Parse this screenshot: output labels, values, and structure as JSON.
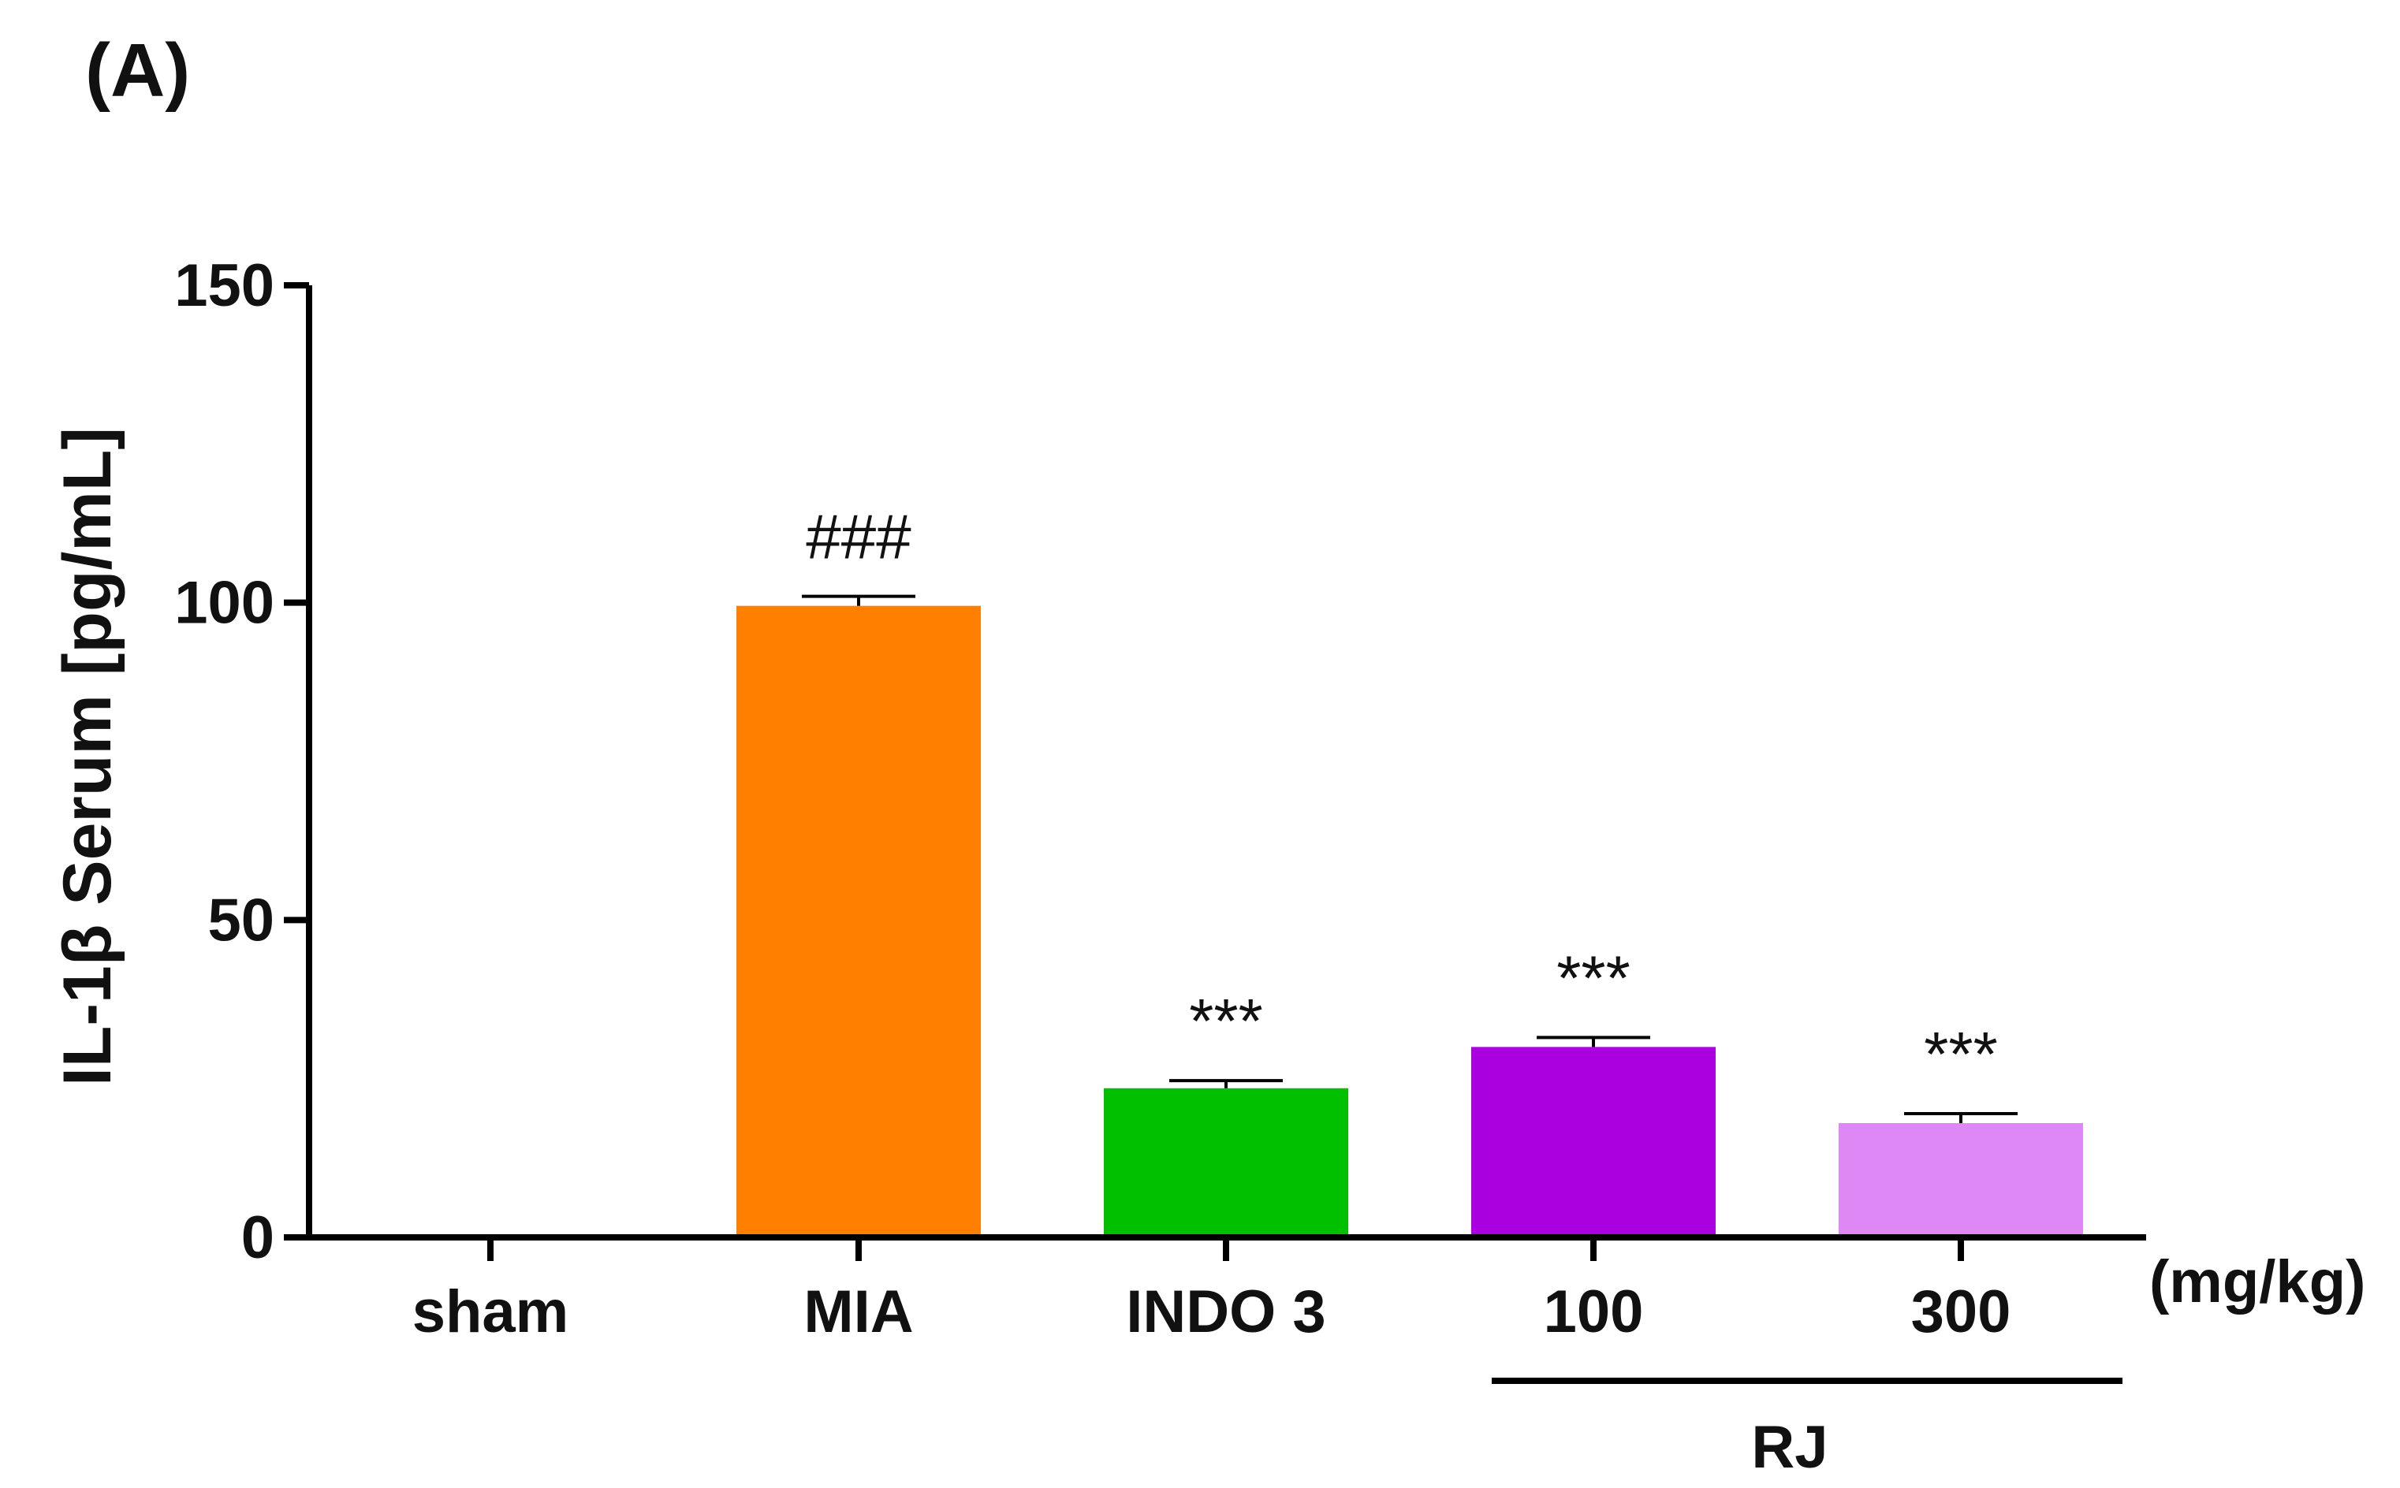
{
  "panel_label": "(A)",
  "chart_data": {
    "type": "bar",
    "ylabel": "IL-1β Serum [pg/mL]",
    "ylim": [
      0,
      150
    ],
    "yticks": [
      0,
      50,
      100,
      150
    ],
    "unit_label": "(mg/kg)",
    "categories": [
      "sham",
      "MIA",
      "INDO 3",
      "100",
      "300"
    ],
    "values": [
      0,
      99.5,
      23.5,
      30,
      18
    ],
    "errors": [
      0,
      1.5,
      1.2,
      1.5,
      1.5
    ],
    "annotations": [
      "",
      "###",
      "***",
      "***",
      "***"
    ],
    "colors": [
      "#ffffff",
      "#ff8000",
      "#00c000",
      "#aa00e0",
      "#dd88f5"
    ],
    "group_label": {
      "text": "RJ",
      "categories": [
        "100",
        "300"
      ]
    },
    "grid": false,
    "legend": "none"
  }
}
